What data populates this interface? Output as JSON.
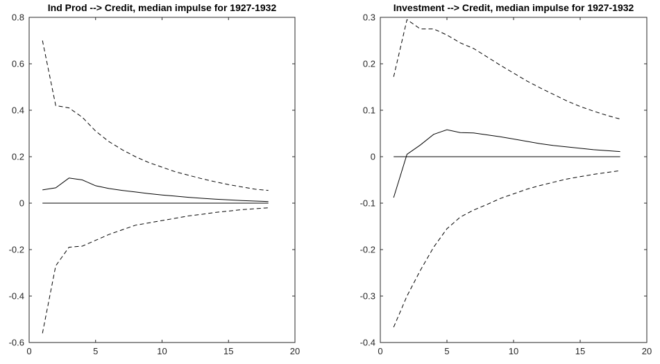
{
  "chart_data": [
    {
      "type": "line",
      "title": "Ind Prod --> Credit, median impulse for 1927-1932",
      "xlabel": "",
      "ylabel": "",
      "xlim": [
        0,
        20
      ],
      "ylim": [
        -0.6,
        0.8
      ],
      "xticks": [
        0,
        5,
        10,
        15,
        20
      ],
      "yticks": [
        -0.6,
        -0.4,
        -0.2,
        0,
        0.2,
        0.4,
        0.6,
        0.8
      ],
      "grid": false,
      "x": [
        1,
        2,
        3,
        4,
        5,
        6,
        7,
        8,
        9,
        10,
        11,
        12,
        13,
        14,
        15,
        16,
        17,
        18
      ],
      "series": [
        {
          "values": [
            0.7,
            0.42,
            0.41,
            0.37,
            0.31,
            0.265,
            0.23,
            0.2,
            0.175,
            0.155,
            0.135,
            0.12,
            0.105,
            0.092,
            0.08,
            0.07,
            0.06,
            0.055
          ],
          "style": "dashed",
          "color": "#000000"
        },
        {
          "values": [
            0.057,
            0.066,
            0.108,
            0.1,
            0.075,
            0.063,
            0.055,
            0.048,
            0.041,
            0.035,
            0.03,
            0.025,
            0.021,
            0.017,
            0.014,
            0.011,
            0.009,
            0.007
          ],
          "style": "solid",
          "color": "#000000"
        },
        {
          "values": [
            -0.56,
            -0.27,
            -0.19,
            -0.185,
            -0.16,
            -0.135,
            -0.115,
            -0.095,
            -0.085,
            -0.075,
            -0.065,
            -0.055,
            -0.048,
            -0.04,
            -0.034,
            -0.028,
            -0.024,
            -0.02
          ],
          "style": "dashed",
          "color": "#000000"
        },
        {
          "values": [
            0,
            0,
            0,
            0,
            0,
            0,
            0,
            0,
            0,
            0,
            0,
            0,
            0,
            0,
            0,
            0,
            0,
            0
          ],
          "style": "solid",
          "color": "#000000"
        }
      ]
    },
    {
      "type": "line",
      "title": "Investment --> Credit, median impulse for 1927-1932",
      "xlabel": "",
      "ylabel": "",
      "xlim": [
        0,
        20
      ],
      "ylim": [
        -0.4,
        0.3
      ],
      "xticks": [
        0,
        5,
        10,
        15,
        20
      ],
      "yticks": [
        -0.4,
        -0.3,
        -0.2,
        -0.1,
        0,
        0.1,
        0.2,
        0.3
      ],
      "grid": false,
      "x": [
        1,
        2,
        3,
        4,
        5,
        6,
        7,
        8,
        9,
        10,
        11,
        12,
        13,
        14,
        15,
        16,
        17,
        18
      ],
      "series": [
        {
          "values": [
            0.172,
            0.295,
            0.275,
            0.275,
            0.262,
            0.245,
            0.233,
            0.215,
            0.197,
            0.18,
            0.163,
            0.148,
            0.134,
            0.12,
            0.108,
            0.098,
            0.089,
            0.081
          ],
          "style": "dashed",
          "color": "#000000"
        },
        {
          "values": [
            -0.088,
            0.005,
            0.025,
            0.048,
            0.058,
            0.052,
            0.051,
            0.047,
            0.043,
            0.038,
            0.033,
            0.028,
            0.024,
            0.021,
            0.018,
            0.015,
            0.013,
            0.011
          ],
          "style": "solid",
          "color": "#000000"
        },
        {
          "values": [
            -0.367,
            -0.3,
            -0.245,
            -0.195,
            -0.155,
            -0.13,
            -0.115,
            -0.103,
            -0.09,
            -0.08,
            -0.07,
            -0.062,
            -0.055,
            -0.048,
            -0.043,
            -0.038,
            -0.034,
            -0.03
          ],
          "style": "dashed",
          "color": "#000000"
        },
        {
          "values": [
            0,
            0,
            0,
            0,
            0,
            0,
            0,
            0,
            0,
            0,
            0,
            0,
            0,
            0,
            0,
            0,
            0,
            0
          ],
          "style": "solid",
          "color": "#000000"
        }
      ]
    }
  ]
}
